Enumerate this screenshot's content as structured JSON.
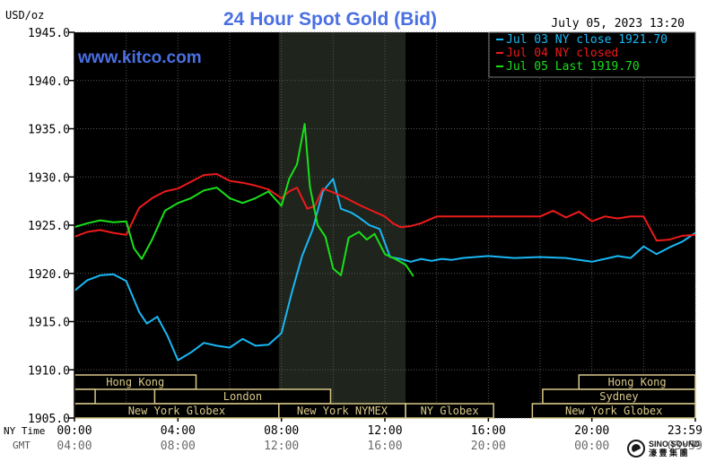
{
  "chart_data": {
    "type": "line",
    "title": "24 Hour Spot Gold (Bid)",
    "ylabel": "USD/oz",
    "timestamp": "July 05, 2023 13:20",
    "watermark": "www.kitco.com",
    "ylim": [
      1905,
      1945
    ],
    "y_ticks": [
      "1945.0",
      "1940.0",
      "1935.0",
      "1930.0",
      "1925.0",
      "1920.0",
      "1915.0",
      "1910.0",
      "1905.0"
    ],
    "x_label_ny": "NY Time",
    "x_label_gmt": "GMT",
    "x_ticks_ny": [
      "00:00",
      "04:00",
      "08:00",
      "12:00",
      "16:00",
      "20:00",
      "23:59"
    ],
    "x_ticks_gmt": [
      "04:00",
      "08:00",
      "12:00",
      "16:00",
      "20:00",
      "00:00",
      "03:59"
    ],
    "xlim_hours": [
      0,
      24
    ],
    "grid": true,
    "legend_position": "top-right",
    "colors": {
      "background": "#000000",
      "grid": "#555555",
      "title": "#4a6fe3",
      "watermark": "#4a6fe3",
      "shade": "#1f241c",
      "session_bar": "#d8c889",
      "session_fill": "#000000"
    },
    "series": [
      {
        "name": "Jul 03 NY close 1921.70",
        "color": "#19b8f5",
        "x": [
          0,
          0.5,
          1,
          1.5,
          2,
          2.5,
          2.8,
          3.2,
          3.6,
          4,
          4.5,
          5,
          5.5,
          6,
          6.5,
          7,
          7.5,
          8,
          8.4,
          8.8,
          9.2,
          9.6,
          10,
          10.3,
          10.7,
          11,
          11.4,
          11.8,
          12.2,
          12.6,
          13,
          13.4,
          13.8,
          14.2,
          14.6,
          15,
          16,
          17,
          18,
          19,
          20,
          20.5,
          21,
          21.5,
          22,
          22.5,
          23,
          23.5,
          24
        ],
        "y": [
          1918.2,
          1919.3,
          1919.8,
          1919.9,
          1919.2,
          1916,
          1914.8,
          1915.5,
          1913.5,
          1911,
          1911.8,
          1912.8,
          1912.5,
          1912.3,
          1913.2,
          1912.5,
          1912.6,
          1913.8,
          1918,
          1921.8,
          1924.5,
          1928.5,
          1929.8,
          1926.7,
          1926.3,
          1925.8,
          1925,
          1924.6,
          1921.7,
          1921.5,
          1921.2,
          1921.5,
          1921.3,
          1921.5,
          1921.4,
          1921.6,
          1921.8,
          1921.6,
          1921.7,
          1921.6,
          1921.2,
          1921.5,
          1921.8,
          1921.6,
          1922.8,
          1922,
          1922.7,
          1923.3,
          1924.2
        ]
      },
      {
        "name": "Jul 04 NY closed",
        "color": "#ee1a1a",
        "x": [
          0,
          0.5,
          1,
          1.5,
          2,
          2.5,
          3,
          3.5,
          4,
          4.5,
          5,
          5.5,
          6,
          6.5,
          7,
          7.5,
          8,
          8.3,
          8.6,
          9,
          9.3,
          9.6,
          10,
          10.5,
          11,
          11.5,
          12,
          12.3,
          12.6,
          13,
          13.4,
          14,
          15,
          16,
          17,
          18,
          18.5,
          19,
          19.5,
          20,
          20.5,
          21,
          21.5,
          22,
          22.5,
          23,
          23.5,
          24
        ],
        "y": [
          1923.8,
          1924.3,
          1924.5,
          1924.2,
          1924,
          1926.8,
          1927.8,
          1928.5,
          1928.8,
          1929.5,
          1930.2,
          1930.3,
          1929.6,
          1929.4,
          1929.1,
          1928.7,
          1927.8,
          1928.5,
          1928.9,
          1926.7,
          1927,
          1928.8,
          1928.4,
          1927.8,
          1927.1,
          1926.5,
          1925.9,
          1925.2,
          1924.8,
          1924.9,
          1925.2,
          1925.9,
          1925.9,
          1925.9,
          1925.9,
          1925.9,
          1926.5,
          1925.8,
          1926.4,
          1925.4,
          1925.9,
          1925.7,
          1925.9,
          1925.9,
          1923.4,
          1923.5,
          1923.9,
          1924
        ]
      },
      {
        "name": "Jul 05 Last 1919.70",
        "color": "#19e019",
        "x": [
          0,
          0.5,
          1,
          1.5,
          2,
          2.3,
          2.6,
          3,
          3.5,
          4,
          4.5,
          5,
          5.5,
          6,
          6.5,
          7,
          7.5,
          8,
          8.3,
          8.6,
          8.9,
          9.1,
          9.4,
          9.7,
          10,
          10.3,
          10.6,
          11,
          11.3,
          11.6,
          12,
          12.4,
          12.8,
          13.1
        ],
        "y": [
          1924.8,
          1925.2,
          1925.5,
          1925.3,
          1925.4,
          1922.6,
          1921.5,
          1923.5,
          1926.5,
          1927.3,
          1927.8,
          1928.6,
          1928.9,
          1927.8,
          1927.3,
          1927.8,
          1928.5,
          1927,
          1929.8,
          1931.3,
          1935.5,
          1929,
          1925,
          1923.8,
          1920.5,
          1919.8,
          1923.7,
          1924.3,
          1923.5,
          1924.1,
          1922,
          1921.5,
          1920.9,
          1919.7
        ]
      }
    ],
    "sessions": [
      {
        "label": "Hong Kong",
        "row": 0,
        "start": 0,
        "end": 4.7
      },
      {
        "label": "",
        "row": 1,
        "start": 0,
        "end": 0.8
      },
      {
        "label": "London",
        "row": 1,
        "start": 3.1,
        "end": 9.9
      },
      {
        "label": "New York Globex",
        "row": 2,
        "start": 0,
        "end": 7.9
      },
      {
        "label": "New York NYMEX",
        "row": 2,
        "start": 7.9,
        "end": 12.8
      },
      {
        "label": "NY Globex",
        "row": 2,
        "start": 12.8,
        "end": 16.2
      },
      {
        "label": "Hong Kong",
        "row": 0,
        "start": 19.5,
        "end": 24
      },
      {
        "label": "Sydney",
        "row": 1,
        "start": 18.1,
        "end": 24
      },
      {
        "label": "New York Globex",
        "row": 2,
        "start": 17.7,
        "end": 24
      }
    ],
    "shaded_region": [
      7.9,
      12.8
    ]
  },
  "footer": {
    "brand": "SINO SOUND",
    "brand_sub": "濠 豐 集 團"
  }
}
